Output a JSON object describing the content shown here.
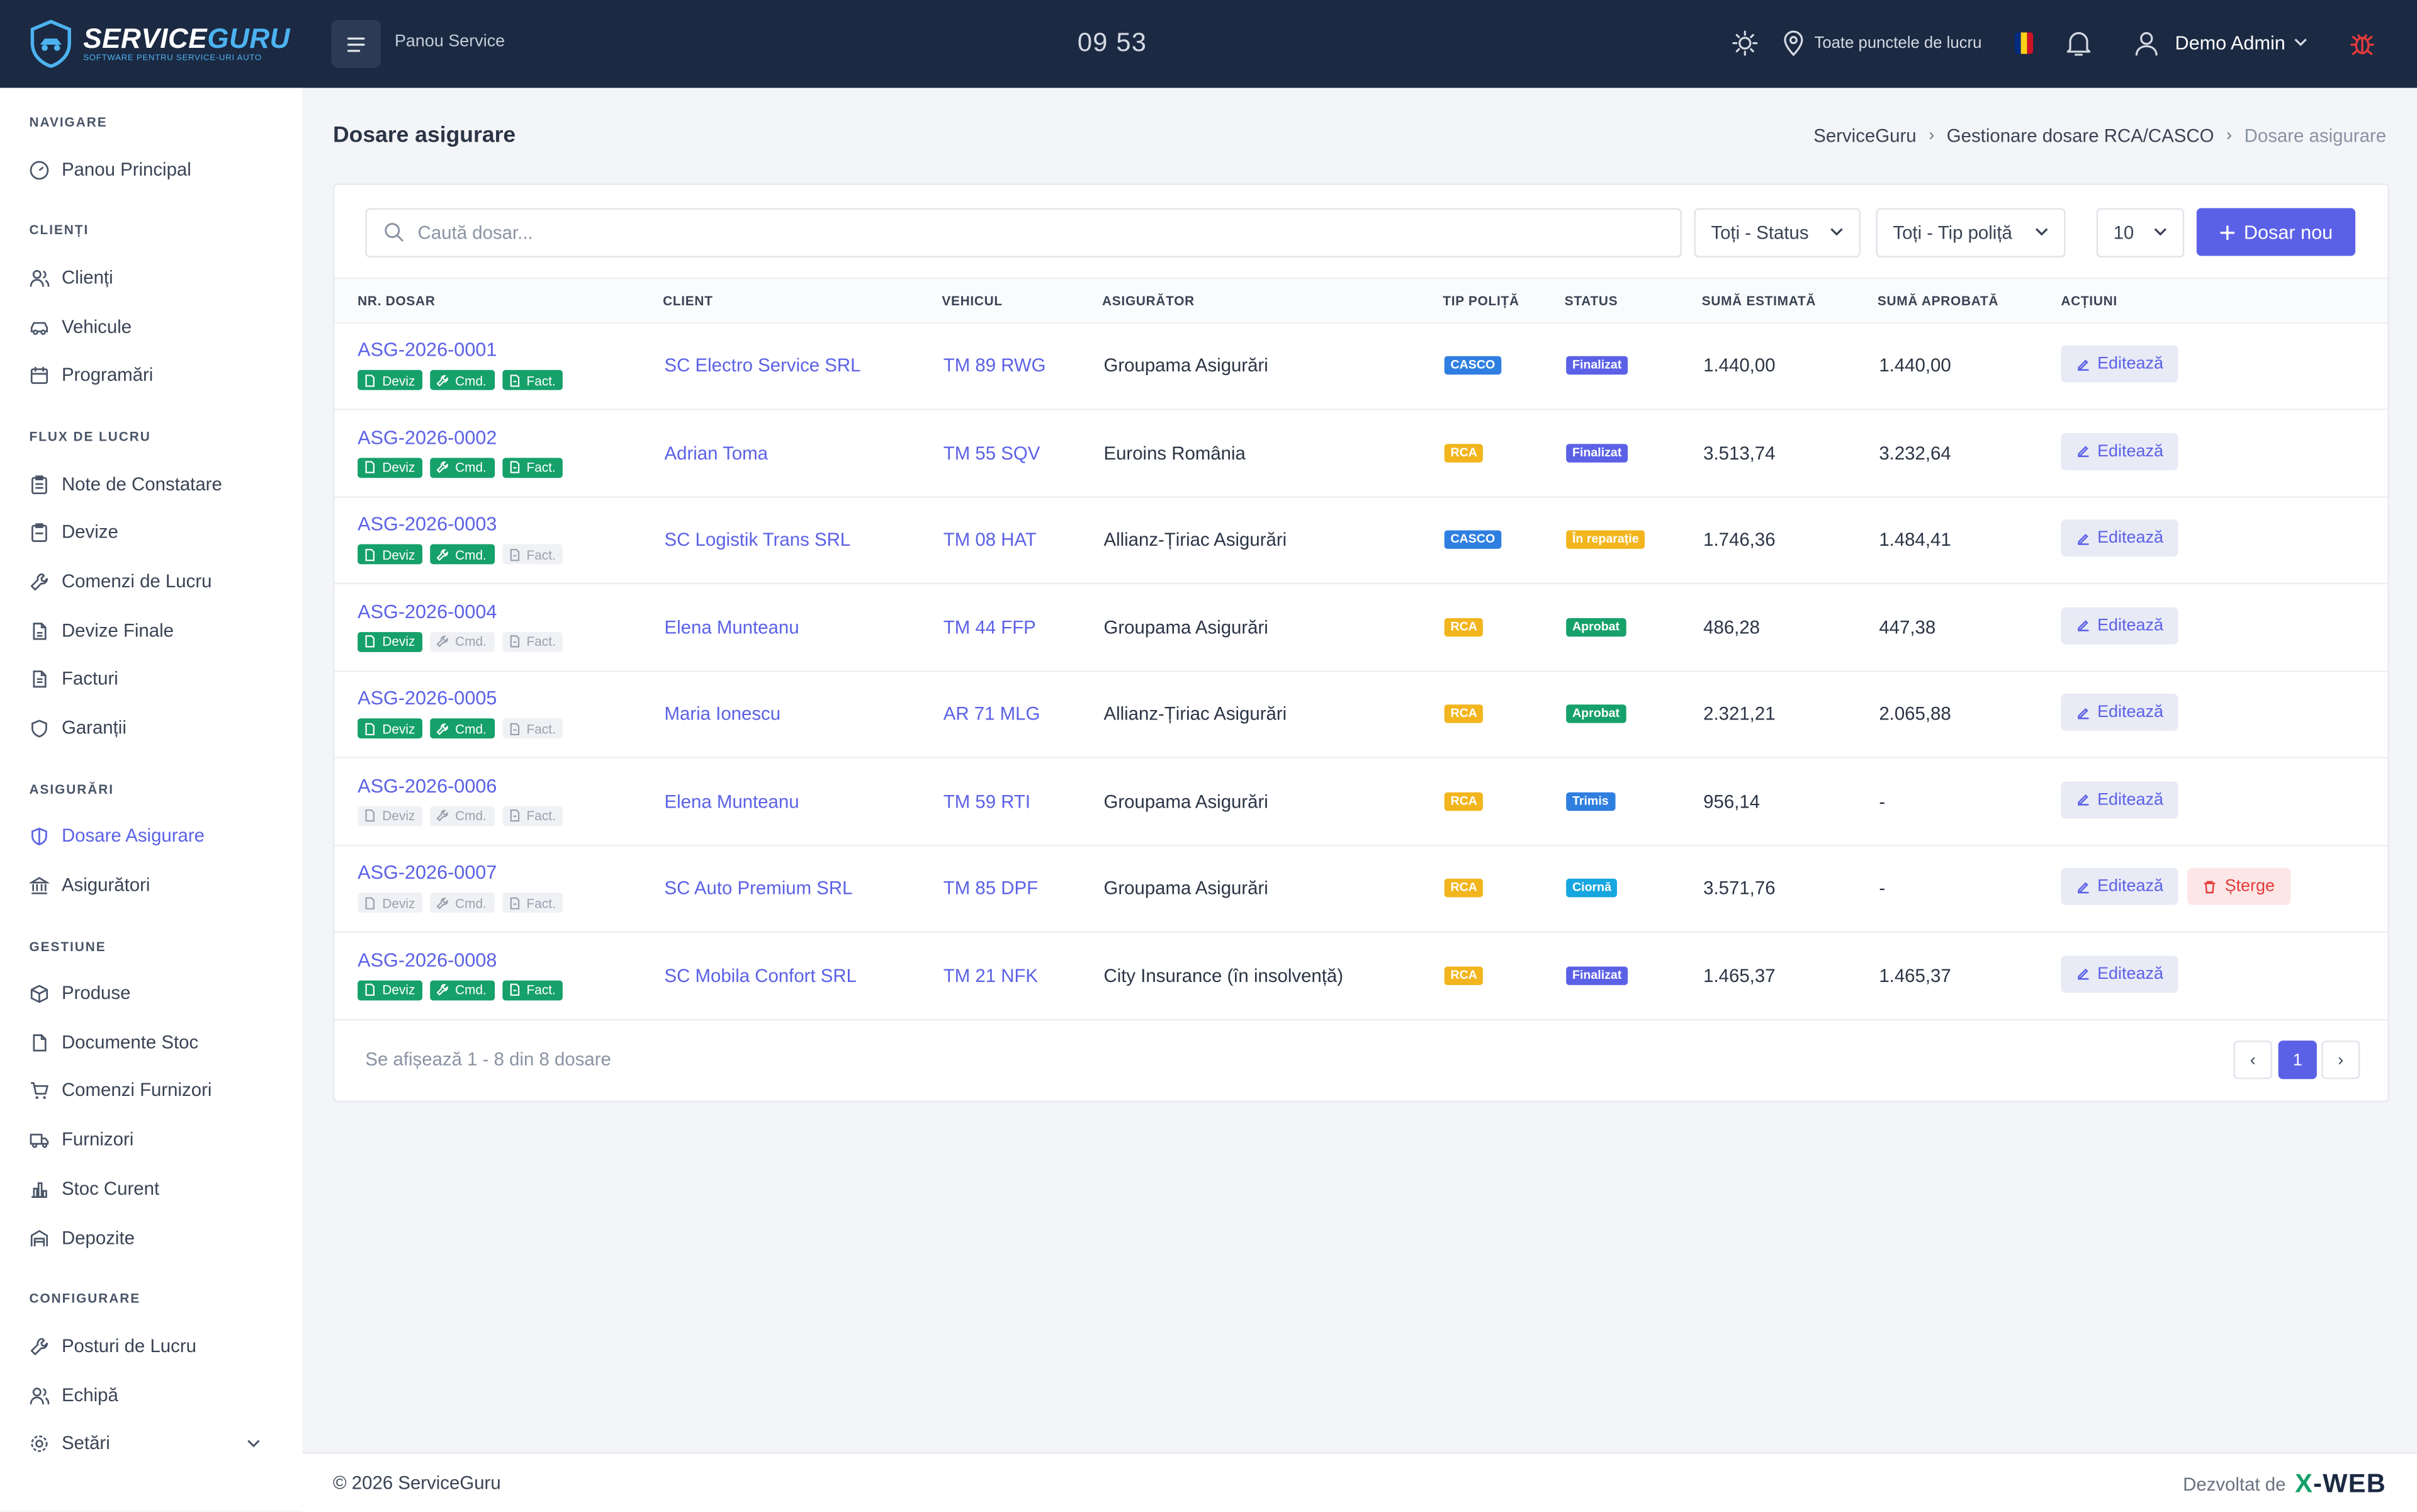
{
  "header": {
    "logo_main": "SERVICE",
    "logo_accent": "GURU",
    "logo_tagline": "SOFTWARE PENTRU SERVICE-URI AUTO",
    "panel_label": "Panou Service",
    "clock": "09 53",
    "location_label": "Toate punctele de lucru",
    "user_name": "Demo Admin",
    "icons": [
      "menu-icon",
      "sun-icon",
      "map-pin-icon",
      "flag-ro-icon",
      "bell-icon",
      "user-icon",
      "chevron-down-icon",
      "bug-icon"
    ]
  },
  "sidebar": {
    "sections": [
      {
        "title": "NAVIGARE",
        "items": [
          {
            "label": "Panou Principal",
            "icon": "dashboard-icon"
          }
        ]
      },
      {
        "title": "CLIENȚI",
        "items": [
          {
            "label": "Clienți",
            "icon": "users-icon"
          },
          {
            "label": "Vehicule",
            "icon": "car-icon"
          },
          {
            "label": "Programări",
            "icon": "calendar-icon"
          }
        ]
      },
      {
        "title": "FLUX DE LUCRU",
        "items": [
          {
            "label": "Note de Constatare",
            "icon": "clipboard-icon"
          },
          {
            "label": "Devize",
            "icon": "clipboard-list-icon"
          },
          {
            "label": "Comenzi de Lucru",
            "icon": "wrench-icon"
          },
          {
            "label": "Devize Finale",
            "icon": "file-icon"
          },
          {
            "label": "Facturi",
            "icon": "file-text-icon"
          },
          {
            "label": "Garanții",
            "icon": "shield-check-icon"
          }
        ]
      },
      {
        "title": "ASIGURĂRI",
        "items": [
          {
            "label": "Dosare Asigurare",
            "icon": "shield-icon",
            "active": true
          },
          {
            "label": "Asigurători",
            "icon": "bank-icon"
          }
        ]
      },
      {
        "title": "GESTIUNE",
        "items": [
          {
            "label": "Produse",
            "icon": "box-icon"
          },
          {
            "label": "Documente Stoc",
            "icon": "document-icon"
          },
          {
            "label": "Comenzi Furnizori",
            "icon": "cart-icon"
          },
          {
            "label": "Furnizori",
            "icon": "truck-icon"
          },
          {
            "label": "Stoc Curent",
            "icon": "bar-chart-icon"
          },
          {
            "label": "Depozite",
            "icon": "warehouse-icon"
          }
        ]
      },
      {
        "title": "CONFIGURARE",
        "items": [
          {
            "label": "Posturi de Lucru",
            "icon": "tool-icon"
          },
          {
            "label": "Echipă",
            "icon": "team-icon"
          },
          {
            "label": "Setări",
            "icon": "gear-icon"
          }
        ]
      }
    ]
  },
  "page": {
    "title": "Dosare asigurare",
    "breadcrumb": [
      "ServiceGuru",
      "Gestionare dosare RCA/CASCO",
      "Dosare asigurare"
    ]
  },
  "toolbar": {
    "search_placeholder": "Caută dosar...",
    "status_filter": "Toți - Status",
    "policy_filter": "Toți - Tip poliță",
    "page_size": "10",
    "new_button": "Dosar nou"
  },
  "table": {
    "columns": [
      "NR. DOSAR",
      "CLIENT",
      "VEHICUL",
      "ASIGURĂTOR",
      "TIP POLIȚĂ",
      "STATUS",
      "SUMĂ ESTIMATĂ",
      "SUMĂ APROBATĂ",
      "ACȚIUNI"
    ],
    "doc_labels": [
      "Deviz",
      "Cmd.",
      "Fact."
    ],
    "edit_label": "Editează",
    "delete_label": "Șterge",
    "rows": [
      {
        "nr": "ASG-2026-0001",
        "docs": [
          true,
          true,
          true
        ],
        "client": "SC Electro Service SRL",
        "vehicle": "TM 89 RWG",
        "insurer": "Groupama Asigurări",
        "policy": "CASCO",
        "status": "Finalizat",
        "status_kind": "fin",
        "estimated": "1.440,00",
        "approved": "1.440,00",
        "deletable": false
      },
      {
        "nr": "ASG-2026-0002",
        "docs": [
          true,
          true,
          true
        ],
        "client": "Adrian Toma",
        "vehicle": "TM 55 SQV",
        "insurer": "Euroins România",
        "policy": "RCA",
        "status": "Finalizat",
        "status_kind": "fin",
        "estimated": "3.513,74",
        "approved": "3.232,64",
        "deletable": false
      },
      {
        "nr": "ASG-2026-0003",
        "docs": [
          true,
          true,
          false
        ],
        "client": "SC Logistik Trans SRL",
        "vehicle": "TM 08 HAT",
        "insurer": "Allianz-Țiriac Asigurări",
        "policy": "CASCO",
        "status": "În reparație",
        "status_kind": "rep",
        "estimated": "1.746,36",
        "approved": "1.484,41",
        "deletable": false
      },
      {
        "nr": "ASG-2026-0004",
        "docs": [
          true,
          false,
          false
        ],
        "client": "Elena Munteanu",
        "vehicle": "TM 44 FFP",
        "insurer": "Groupama Asigurări",
        "policy": "RCA",
        "status": "Aprobat",
        "status_kind": "apr",
        "estimated": "486,28",
        "approved": "447,38",
        "deletable": false
      },
      {
        "nr": "ASG-2026-0005",
        "docs": [
          true,
          true,
          false
        ],
        "client": "Maria Ionescu",
        "vehicle": "AR 71 MLG",
        "insurer": "Allianz-Țiriac Asigurări",
        "policy": "RCA",
        "status": "Aprobat",
        "status_kind": "apr",
        "estimated": "2.321,21",
        "approved": "2.065,88",
        "deletable": false
      },
      {
        "nr": "ASG-2026-0006",
        "docs": [
          false,
          false,
          false
        ],
        "client": "Elena Munteanu",
        "vehicle": "TM 59 RTI",
        "insurer": "Groupama Asigurări",
        "policy": "RCA",
        "status": "Trimis",
        "status_kind": "tri",
        "estimated": "956,14",
        "approved": "-",
        "deletable": false
      },
      {
        "nr": "ASG-2026-0007",
        "docs": [
          false,
          false,
          false
        ],
        "client": "SC Auto Premium SRL",
        "vehicle": "TM 85 DPF",
        "insurer": "Groupama Asigurări",
        "policy": "RCA",
        "status": "Ciornă",
        "status_kind": "cio",
        "estimated": "3.571,76",
        "approved": "-",
        "deletable": true
      },
      {
        "nr": "ASG-2026-0008",
        "docs": [
          true,
          true,
          true
        ],
        "client": "SC Mobila Confort SRL",
        "vehicle": "TM 21 NFK",
        "insurer": "City Insurance (în insolvență)",
        "policy": "RCA",
        "status": "Finalizat",
        "status_kind": "fin",
        "estimated": "1.465,37",
        "approved": "1.465,37",
        "deletable": false
      }
    ]
  },
  "pagination": {
    "info": "Se afișează 1 - 8 din 8 dosare",
    "current": "1",
    "prev": "‹",
    "next": "›"
  },
  "footer": {
    "copyright": "© 2026 ServiceGuru",
    "developed_by": "Dezvoltat de",
    "brand_x": "X",
    "brand_rest": "-WEB"
  },
  "colors": {
    "topbar": "#1b2942",
    "accent": "#5b61e6",
    "success": "#16a06a",
    "warning": "#f2b51d",
    "info": "#2f7fe0",
    "danger": "#e23b3b"
  }
}
